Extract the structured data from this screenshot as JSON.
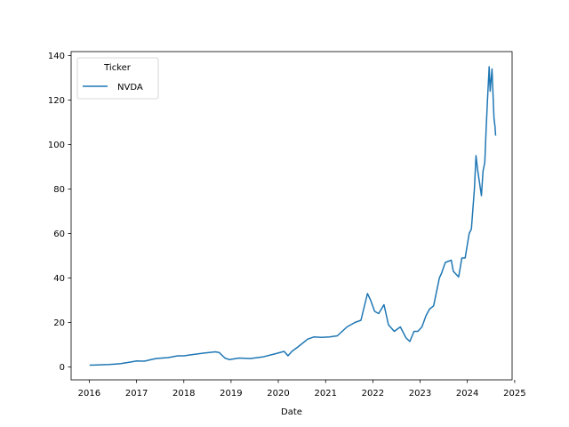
{
  "chart_data": {
    "type": "line",
    "title": "",
    "xlabel": "Date",
    "ylabel": "",
    "xlim": [
      "2015-08-14",
      "2024-12-12"
    ],
    "ylim": [
      -5.8,
      141.8
    ],
    "x_ticks": [
      "2016",
      "2017",
      "2018",
      "2019",
      "2020",
      "2021",
      "2022",
      "2023",
      "2024",
      "2025"
    ],
    "x_tick_dates": [
      "2016-01-01",
      "2017-01-01",
      "2018-01-01",
      "2019-01-01",
      "2020-01-01",
      "2021-01-01",
      "2022-01-01",
      "2023-01-01",
      "2024-01-01",
      "2025-01-01"
    ],
    "y_ticks": [
      0,
      20,
      40,
      60,
      80,
      100,
      120,
      140
    ],
    "y_tick_labels": [
      "0",
      "20",
      "40",
      "60",
      "80",
      "100",
      "120",
      "140"
    ],
    "grid": false,
    "legend": {
      "title": "Ticker",
      "placement": "top-left"
    },
    "series": [
      {
        "name": "NVDA",
        "color": "#1f77b4",
        "x": [
          "2016-01-04",
          "2016-03-01",
          "2016-06-01",
          "2016-09-01",
          "2016-11-15",
          "2017-01-01",
          "2017-03-01",
          "2017-06-01",
          "2017-09-01",
          "2017-11-15",
          "2018-01-01",
          "2018-03-01",
          "2018-06-01",
          "2018-09-01",
          "2018-10-01",
          "2018-11-15",
          "2018-12-20",
          "2019-03-01",
          "2019-06-01",
          "2019-09-01",
          "2019-12-01",
          "2020-02-15",
          "2020-03-16",
          "2020-04-15",
          "2020-06-01",
          "2020-08-15",
          "2020-10-01",
          "2020-12-01",
          "2021-02-01",
          "2021-04-01",
          "2021-06-15",
          "2021-08-15",
          "2021-10-01",
          "2021-11-20",
          "2021-12-15",
          "2022-01-15",
          "2022-02-15",
          "2022-03-28",
          "2022-05-01",
          "2022-06-15",
          "2022-08-01",
          "2022-09-15",
          "2022-10-14",
          "2022-11-15",
          "2022-12-15",
          "2023-01-15",
          "2023-02-15",
          "2023-03-15",
          "2023-04-15",
          "2023-05-30",
          "2023-06-15",
          "2023-07-15",
          "2023-08-30",
          "2023-09-15",
          "2023-10-26",
          "2023-11-20",
          "2023-12-15",
          "2024-01-15",
          "2024-02-01",
          "2024-02-25",
          "2024-03-08",
          "2024-03-20",
          "2024-04-19",
          "2024-05-01",
          "2024-05-15",
          "2024-05-25",
          "2024-06-05",
          "2024-06-18",
          "2024-06-25",
          "2024-07-10",
          "2024-07-25",
          "2024-08-02",
          "2024-08-07"
        ],
        "y": [
          0.8,
          0.9,
          1.1,
          1.5,
          2.2,
          2.7,
          2.6,
          3.8,
          4.2,
          5.0,
          5.0,
          5.5,
          6.2,
          6.8,
          6.5,
          4.0,
          3.3,
          4.0,
          3.8,
          4.5,
          5.8,
          7.0,
          5.0,
          7.0,
          9.0,
          12.5,
          13.5,
          13.3,
          13.5,
          14.0,
          18.0,
          20.0,
          21.0,
          33.0,
          30.0,
          25.0,
          24.0,
          28.0,
          19.0,
          16.0,
          18.0,
          13.0,
          11.5,
          16.0,
          16.0,
          18.0,
          23.0,
          26.0,
          27.5,
          40.0,
          42.0,
          47.0,
          48.0,
          43.0,
          40.5,
          49.0,
          49.0,
          60.0,
          62.0,
          80.0,
          95.0,
          89.0,
          77.0,
          88.0,
          92.0,
          106.0,
          120.0,
          135.0,
          124.0,
          134.0,
          112.0,
          108.0,
          104.0
        ]
      }
    ]
  }
}
